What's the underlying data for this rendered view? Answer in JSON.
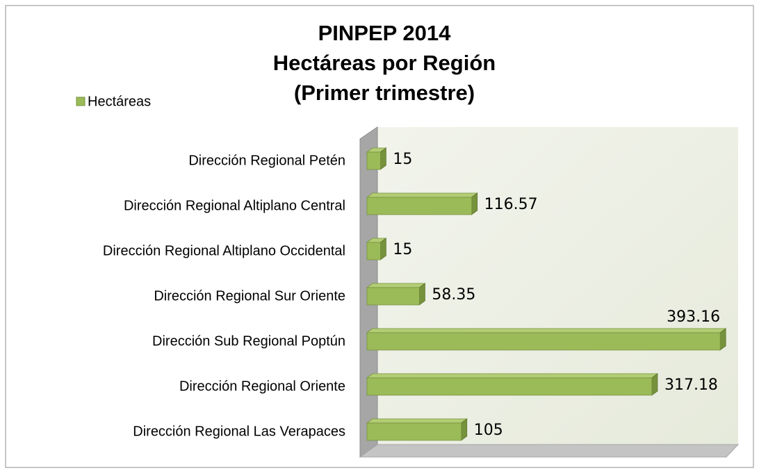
{
  "chart_data": {
    "type": "bar3d-horizontal",
    "title": [
      "PINPEP 2014",
      "Hectáreas por Región",
      "(Primer trimestre)"
    ],
    "categories": [
      "Dirección Regional Petén",
      "Dirección Regional Altiplano Central",
      "Dirección Regional Altiplano Occidental",
      "Dirección Regional Sur Oriente",
      "Dirección Sub Regional Poptún",
      "Dirección Regional Oriente",
      "Dirección Regional Las Verapaces"
    ],
    "series": [
      {
        "name": "Hectáreas",
        "color": "#9bbb59",
        "values": [
          15,
          116.57,
          15,
          58.35,
          393.16,
          317.18,
          105
        ]
      }
    ],
    "xlim": [
      0,
      400
    ],
    "legend": "top-left"
  }
}
